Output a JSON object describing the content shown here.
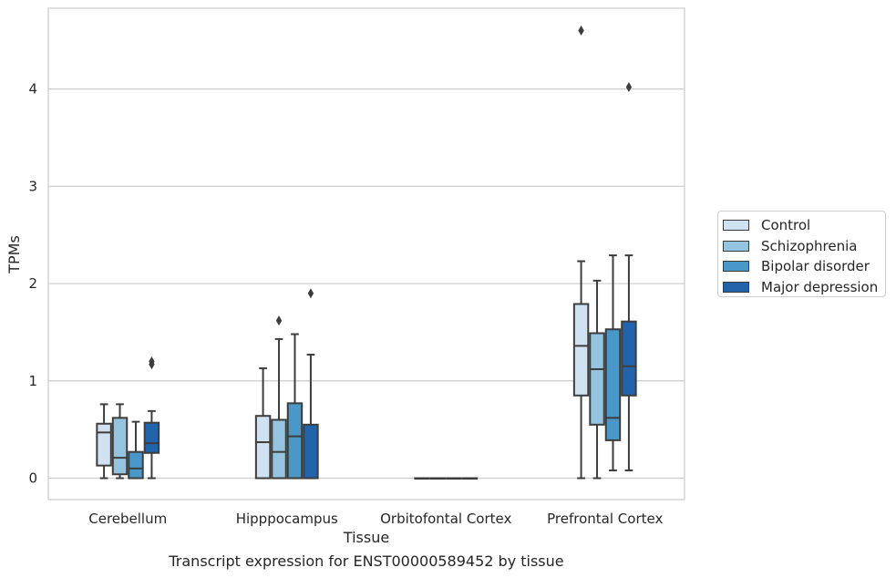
{
  "chart_data": {
    "type": "box",
    "title": "Transcript expression for ENST00000589452 by tissue",
    "xlabel": "Tissue",
    "ylabel": "TPMs",
    "ylim": [
      -0.22,
      4.83
    ],
    "yticks": [
      0,
      1,
      2,
      3,
      4
    ],
    "categories": [
      "Cerebellum",
      "Hipppocampus",
      "Orbitofontal Cortex",
      "Prefrontal Cortex"
    ],
    "grid": "horizontal",
    "legend_position": "right",
    "series": [
      {
        "name": "Control",
        "color": "#d0e1f2",
        "boxes": [
          {
            "whislo": 0.0,
            "q1": 0.13,
            "med": 0.47,
            "q3": 0.56,
            "whishi": 0.76,
            "fliers": []
          },
          {
            "whislo": 0.0,
            "q1": 0.0,
            "med": 0.37,
            "q3": 0.64,
            "whishi": 1.13,
            "fliers": []
          },
          {
            "whislo": 0.0,
            "q1": 0.0,
            "med": 0.0,
            "q3": 0.0,
            "whishi": 0.0,
            "fliers": []
          },
          {
            "whislo": 0.0,
            "q1": 0.85,
            "med": 1.36,
            "q3": 1.79,
            "whishi": 2.23,
            "fliers": [
              4.6
            ]
          }
        ]
      },
      {
        "name": "Schizophrenia",
        "color": "#94c4df",
        "boxes": [
          {
            "whislo": 0.0,
            "q1": 0.04,
            "med": 0.21,
            "q3": 0.62,
            "whishi": 0.76,
            "fliers": []
          },
          {
            "whislo": 0.0,
            "q1": 0.0,
            "med": 0.27,
            "q3": 0.6,
            "whishi": 1.43,
            "fliers": [
              1.62
            ]
          },
          {
            "whislo": 0.0,
            "q1": 0.0,
            "med": 0.0,
            "q3": 0.0,
            "whishi": 0.0,
            "fliers": []
          },
          {
            "whislo": 0.0,
            "q1": 0.55,
            "med": 1.12,
            "q3": 1.49,
            "whishi": 2.03,
            "fliers": []
          }
        ]
      },
      {
        "name": "Bipolar disorder",
        "color": "#4a98c9",
        "boxes": [
          {
            "whislo": 0.0,
            "q1": 0.0,
            "med": 0.1,
            "q3": 0.27,
            "whishi": 0.58,
            "fliers": []
          },
          {
            "whislo": 0.0,
            "q1": 0.0,
            "med": 0.43,
            "q3": 0.77,
            "whishi": 1.48,
            "fliers": []
          },
          {
            "whislo": 0.0,
            "q1": 0.0,
            "med": 0.0,
            "q3": 0.0,
            "whishi": 0.0,
            "fliers": []
          },
          {
            "whislo": 0.08,
            "q1": 0.39,
            "med": 0.62,
            "q3": 1.53,
            "whishi": 2.29,
            "fliers": []
          }
        ]
      },
      {
        "name": "Major depression",
        "color": "#2164ab",
        "boxes": [
          {
            "whislo": 0.0,
            "q1": 0.26,
            "med": 0.36,
            "q3": 0.57,
            "whishi": 0.69,
            "fliers": [
              1.17,
              1.2
            ]
          },
          {
            "whislo": 0.0,
            "q1": 0.0,
            "med": 0.0,
            "q3": 0.55,
            "whishi": 1.27,
            "fliers": [
              1.9
            ]
          },
          {
            "whislo": 0.0,
            "q1": 0.0,
            "med": 0.0,
            "q3": 0.0,
            "whishi": 0.0,
            "fliers": []
          },
          {
            "whislo": 0.08,
            "q1": 0.85,
            "med": 1.15,
            "q3": 1.61,
            "whishi": 2.29,
            "fliers": [
              4.02
            ]
          }
        ]
      }
    ]
  }
}
